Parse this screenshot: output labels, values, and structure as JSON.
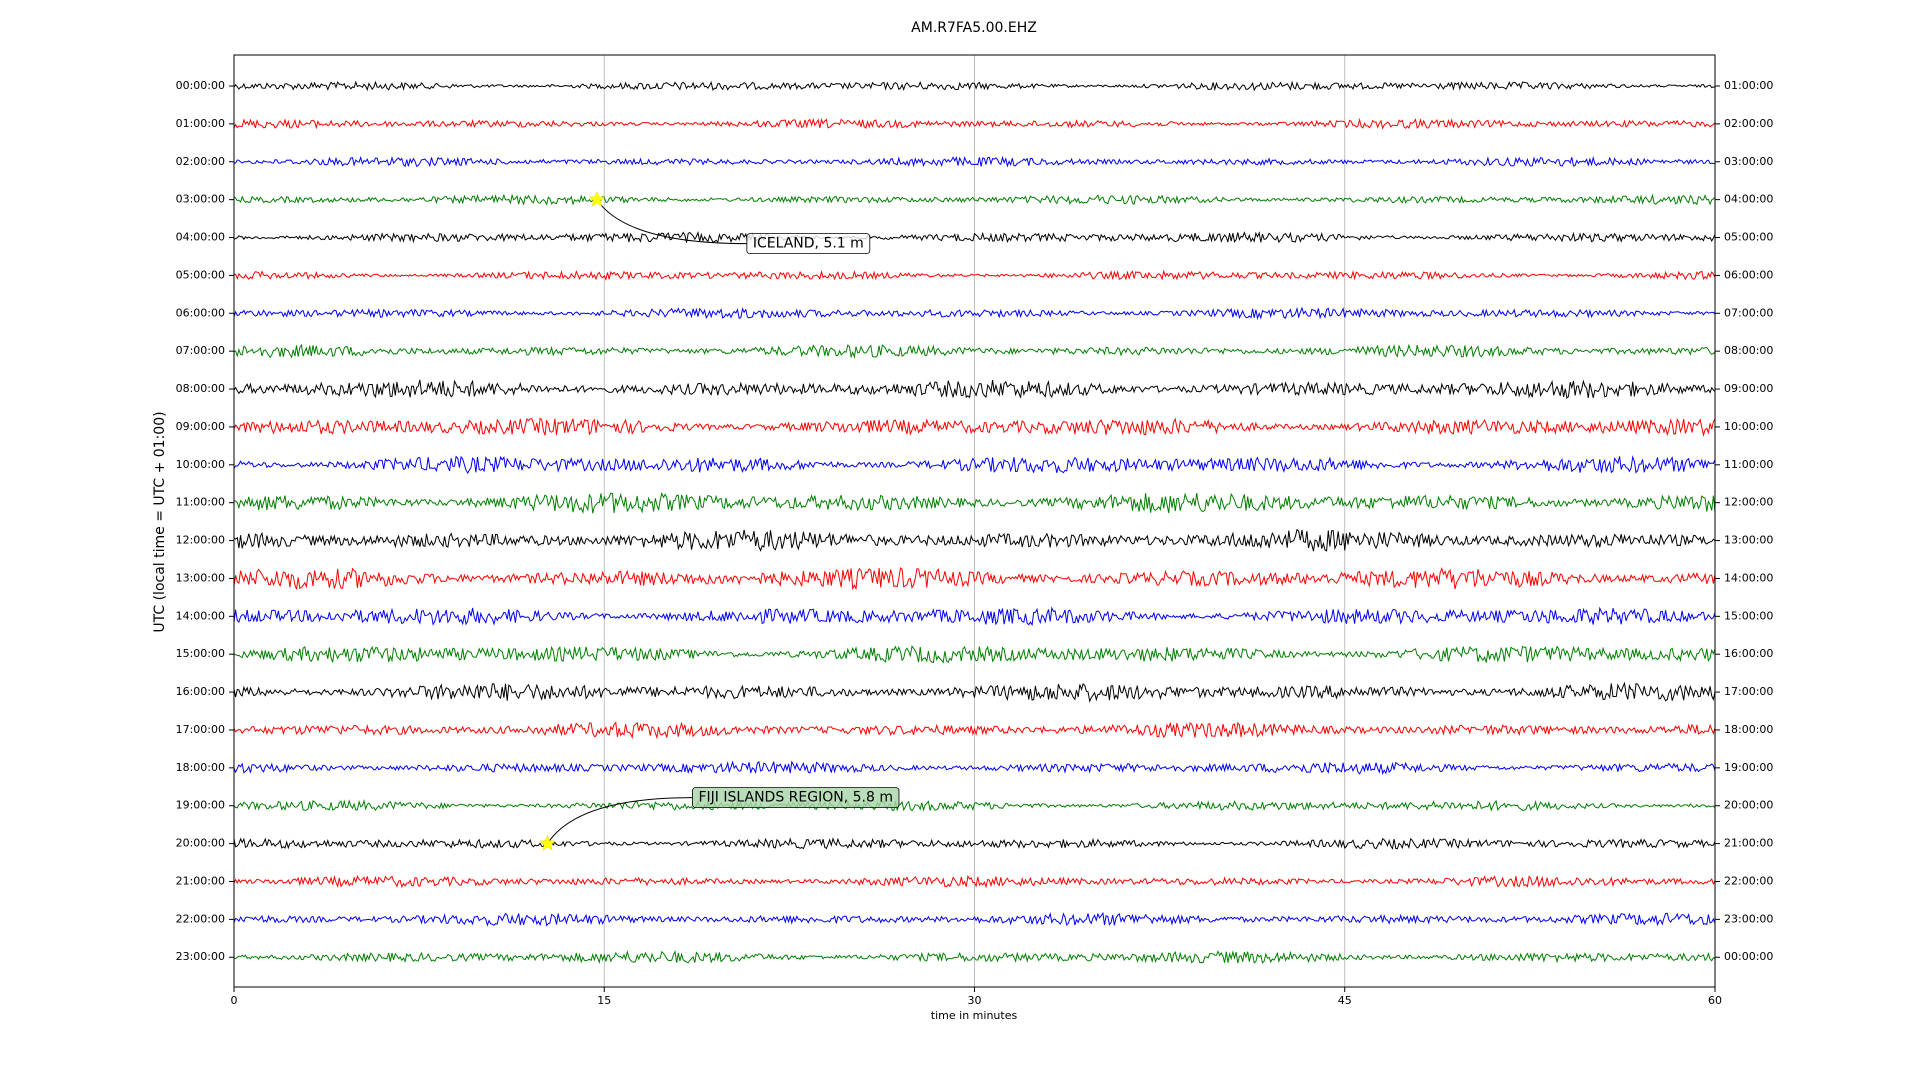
{
  "chart_data": {
    "type": "helicorder",
    "title": "AM.R7FA5.00.EHZ",
    "x_label": "time in minutes",
    "y_label": "UTC (local time = UTC + 01:00)",
    "xlim": [
      0,
      60
    ],
    "xticks": [
      0,
      15,
      30,
      45,
      60
    ],
    "grid": true,
    "colors": [
      "#000000",
      "#ff0000",
      "#0000ff",
      "#008000"
    ],
    "rows": [
      "00:00:00",
      "01:00:00",
      "02:00:00",
      "03:00:00",
      "04:00:00",
      "05:00:00",
      "06:00:00",
      "07:00:00",
      "08:00:00",
      "09:00:00",
      "10:00:00",
      "11:00:00",
      "12:00:00",
      "13:00:00",
      "14:00:00",
      "15:00:00",
      "16:00:00",
      "17:00:00",
      "18:00:00",
      "19:00:00",
      "20:00:00",
      "21:00:00",
      "22:00:00",
      "23:00:00"
    ],
    "right_rows": [
      "01:00:00",
      "02:00:00",
      "03:00:00",
      "04:00:00",
      "05:00:00",
      "06:00:00",
      "07:00:00",
      "08:00:00",
      "09:00:00",
      "10:00:00",
      "11:00:00",
      "12:00:00",
      "13:00:00",
      "14:00:00",
      "15:00:00",
      "16:00:00",
      "17:00:00",
      "18:00:00",
      "19:00:00",
      "20:00:00",
      "21:00:00",
      "22:00:00",
      "23:00:00",
      "00:00:00"
    ],
    "events": [
      {
        "text": "ICELAND, 5.1 m",
        "row": 3,
        "x": 14.7
      },
      {
        "text": "FIJI ISLANDS REGION, 5.8 m",
        "row": 20,
        "x": 12.7
      }
    ]
  }
}
